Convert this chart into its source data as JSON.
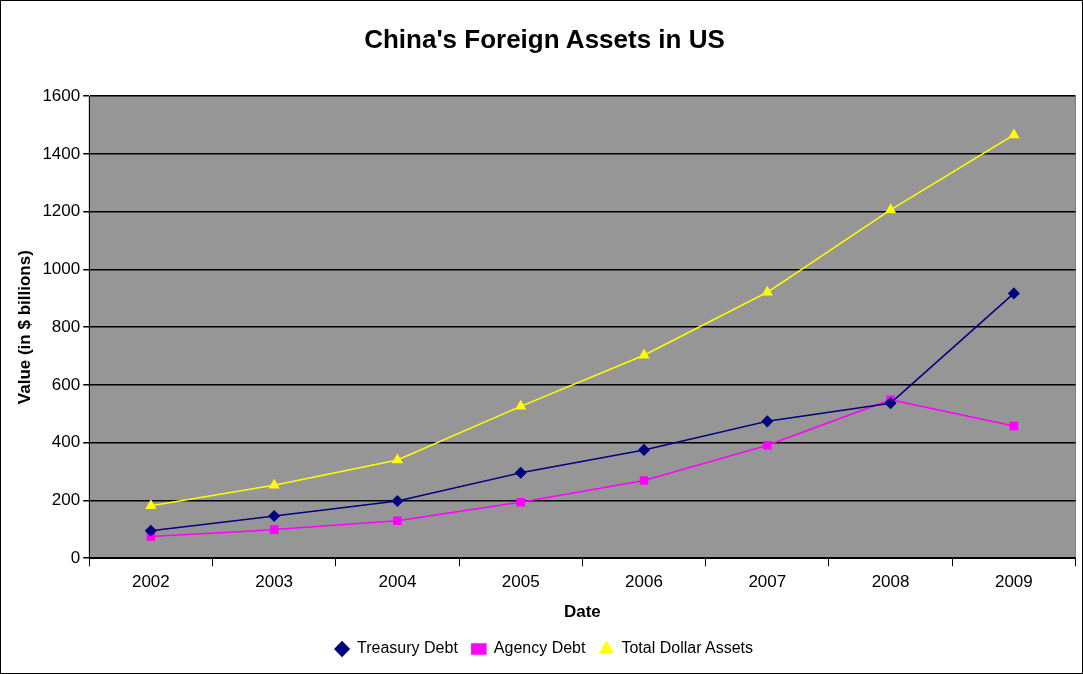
{
  "chart_data": {
    "type": "line",
    "title": "China's Foreign Assets in US",
    "xlabel": "Date",
    "ylabel": "Value (in $ billions)",
    "categories": [
      "2002",
      "2003",
      "2004",
      "2005",
      "2006",
      "2007",
      "2008",
      "2009"
    ],
    "series": [
      {
        "name": "Treasury Debt",
        "color": "#000080",
        "marker": "diamond",
        "values": [
          95,
          146,
          198,
          296,
          375,
          474,
          537,
          917
        ]
      },
      {
        "name": "Agency Debt",
        "color": "#ff00ff",
        "marker": "square",
        "values": [
          75,
          99,
          130,
          194,
          269,
          391,
          549,
          458
        ]
      },
      {
        "name": "Total Dollar Assets",
        "color": "#ffff00",
        "marker": "triangle",
        "values": [
          182,
          253,
          340,
          526,
          703,
          921,
          1206,
          1466
        ]
      }
    ],
    "ylim": [
      0,
      1600
    ],
    "yticks": [
      0,
      200,
      400,
      600,
      800,
      1000,
      1200,
      1400,
      1600
    ],
    "grid": "y",
    "legend": "bottom",
    "line_style": "solid"
  }
}
